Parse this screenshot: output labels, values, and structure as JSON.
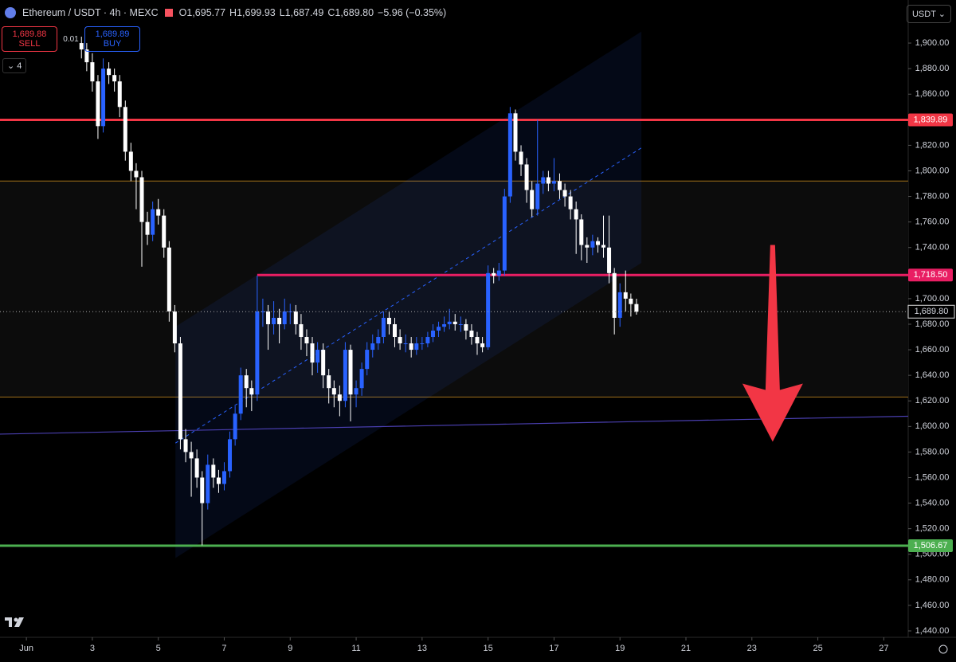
{
  "header": {
    "symbol": "Ethereum / USDT · 4h · MEXC",
    "ohlc": [
      "O1,695.77",
      "H1,699.93",
      "L1,687.49",
      "C1,689.80",
      "−5.96 (−0.35%)"
    ]
  },
  "trade": {
    "sell_price": "1,689.88",
    "sell": "SELL",
    "qty": "0.01",
    "buy_price": "1,689.89",
    "buy": "BUY"
  },
  "indicator_count": "4",
  "currency": "USDT",
  "chart_data": {
    "type": "candlestick",
    "x": [
      2.67,
      2.83,
      3,
      3.17,
      3.33,
      3.5,
      3.67,
      3.83,
      4,
      4.17,
      4.33,
      4.5,
      4.67,
      4.83,
      5,
      5.17,
      5.33,
      5.5,
      5.67,
      5.83,
      6,
      6.17,
      6.33,
      6.5,
      6.67,
      6.83,
      7,
      7.17,
      7.33,
      7.5,
      7.67,
      7.83,
      8,
      8.17,
      8.33,
      8.5,
      8.67,
      8.83,
      9,
      9.17,
      9.33,
      9.5,
      9.67,
      9.83,
      10,
      10.17,
      10.33,
      10.5,
      10.67,
      10.83,
      11,
      11.17,
      11.33,
      11.5,
      11.67,
      11.83,
      12,
      12.17,
      12.33,
      12.5,
      12.67,
      12.83,
      13,
      13.17,
      13.33,
      13.5,
      13.67,
      13.83,
      14,
      14.17,
      14.33,
      14.5,
      14.67,
      14.83,
      15,
      15.17,
      15.33,
      15.5,
      15.67,
      15.83,
      16,
      16.17,
      16.33,
      16.5,
      16.67,
      16.83,
      17,
      17.17,
      17.33,
      17.5,
      17.67,
      17.83,
      18,
      18.17,
      18.33,
      18.5,
      18.67,
      18.83,
      19,
      19.17,
      19.33,
      19.5
    ],
    "open": [
      1900,
      1895,
      1885,
      1870,
      1835,
      1880,
      1875,
      1870,
      1850,
      1815,
      1800,
      1795,
      1760,
      1750,
      1770,
      1765,
      1740,
      1690,
      1665,
      1590,
      1580,
      1575,
      1560,
      1540,
      1570,
      1560,
      1555,
      1565,
      1590,
      1610,
      1640,
      1630,
      1625,
      1690,
      1690,
      1680,
      1685,
      1680,
      1690,
      1690,
      1680,
      1670,
      1665,
      1650,
      1660,
      1640,
      1630,
      1625,
      1620,
      1660,
      1625,
      1630,
      1645,
      1660,
      1665,
      1670,
      1685,
      1680,
      1670,
      1665,
      1665,
      1660,
      1665,
      1665,
      1670,
      1675,
      1678,
      1680,
      1682,
      1680,
      1680,
      1675,
      1670,
      1665,
      1662,
      1720,
      1718,
      1722,
      1780,
      1845,
      1815,
      1805,
      1785,
      1770,
      1790,
      1795,
      1790,
      1792,
      1785,
      1780,
      1770,
      1762,
      1742,
      1740,
      1745,
      1742,
      1740,
      1720,
      1685,
      1705,
      1700,
      1695.77
    ],
    "high": [
      1905,
      1900,
      1892,
      1875,
      1888,
      1885,
      1880,
      1875,
      1855,
      1822,
      1806,
      1800,
      1768,
      1776,
      1778,
      1770,
      1745,
      1695,
      1670,
      1598,
      1588,
      1582,
      1565,
      1578,
      1575,
      1566,
      1572,
      1596,
      1616,
      1646,
      1645,
      1636,
      1718,
      1700,
      1695,
      1698,
      1692,
      1700,
      1696,
      1695,
      1688,
      1676,
      1670,
      1666,
      1665,
      1645,
      1636,
      1632,
      1666,
      1664,
      1636,
      1650,
      1666,
      1672,
      1676,
      1690,
      1690,
      1685,
      1676,
      1672,
      1670,
      1670,
      1670,
      1674,
      1680,
      1682,
      1686,
      1692,
      1688,
      1686,
      1684,
      1680,
      1674,
      1670,
      1726,
      1724,
      1728,
      1786,
      1850,
      1848,
      1820,
      1810,
      1792,
      1840,
      1800,
      1800,
      1810,
      1798,
      1790,
      1785,
      1776,
      1766,
      1748,
      1750,
      1748,
      1765,
      1765,
      1724,
      1712,
      1722,
      1704,
      1699.93
    ],
    "low": [
      1888,
      1878,
      1862,
      1825,
      1830,
      1868,
      1862,
      1842,
      1808,
      1792,
      1770,
      1725,
      1742,
      1745,
      1758,
      1732,
      1682,
      1658,
      1582,
      1572,
      1545,
      1552,
      1507,
      1535,
      1552,
      1548,
      1550,
      1560,
      1585,
      1605,
      1615,
      1612,
      1620,
      1678,
      1660,
      1672,
      1665,
      1676,
      1680,
      1672,
      1660,
      1655,
      1640,
      1642,
      1630,
      1618,
      1615,
      1608,
      1615,
      1604,
      1615,
      1624,
      1640,
      1654,
      1660,
      1665,
      1672,
      1662,
      1660,
      1658,
      1654,
      1656,
      1660,
      1662,
      1666,
      1670,
      1674,
      1676,
      1675,
      1674,
      1668,
      1664,
      1656,
      1658,
      1660,
      1712,
      1714,
      1718,
      1775,
      1808,
      1796,
      1775,
      1764,
      1765,
      1782,
      1784,
      1784,
      1778,
      1772,
      1762,
      1735,
      1730,
      1728,
      1734,
      1736,
      1732,
      1712,
      1672,
      1678,
      1690,
      1686,
      1687.49
    ],
    "close": [
      1895,
      1885,
      1870,
      1835,
      1880,
      1875,
      1870,
      1850,
      1815,
      1800,
      1795,
      1760,
      1750,
      1770,
      1765,
      1740,
      1690,
      1665,
      1590,
      1580,
      1575,
      1560,
      1540,
      1570,
      1560,
      1555,
      1565,
      1590,
      1610,
      1640,
      1630,
      1625,
      1690,
      1690,
      1680,
      1685,
      1680,
      1690,
      1690,
      1680,
      1670,
      1665,
      1650,
      1660,
      1640,
      1630,
      1625,
      1620,
      1660,
      1625,
      1630,
      1645,
      1660,
      1665,
      1670,
      1685,
      1680,
      1670,
      1665,
      1665,
      1660,
      1665,
      1665,
      1670,
      1675,
      1678,
      1680,
      1682,
      1680,
      1680,
      1675,
      1670,
      1665,
      1662,
      1720,
      1718,
      1722,
      1780,
      1845,
      1815,
      1805,
      1785,
      1770,
      1790,
      1795,
      1790,
      1792,
      1785,
      1780,
      1770,
      1762,
      1742,
      1740,
      1745,
      1742,
      1740,
      1720,
      1685,
      1705,
      1700,
      1695.77,
      1689.8
    ],
    "up_color": "#2962ff",
    "down_color": "#ffffff",
    "xlim": [
      0.2,
      27.74
    ],
    "ylim": [
      1435,
      1933.7
    ],
    "xticks": [
      {
        "value": 1,
        "label": "Jun"
      },
      3,
      5,
      7,
      9,
      11,
      13,
      15,
      17,
      19,
      21,
      23,
      25,
      27
    ],
    "yticks": [
      {
        "value": 1440,
        "label": "1,440.00"
      },
      {
        "value": 1460,
        "label": "1,460.00"
      },
      {
        "value": 1480,
        "label": "1,480.00"
      },
      {
        "value": 1500,
        "label": "1,500.00"
      },
      {
        "value": 1520,
        "label": "1,520.00"
      },
      {
        "value": 1540,
        "label": "1,540.00"
      },
      {
        "value": 1560,
        "label": "1,560.00"
      },
      {
        "value": 1580,
        "label": "1,580.00"
      },
      {
        "value": 1600,
        "label": "1,600.00"
      },
      {
        "value": 1620,
        "label": "1,620.00"
      },
      {
        "value": 1640,
        "label": "1,640.00"
      },
      {
        "value": 1660,
        "label": "1,660.00"
      },
      {
        "value": 1680,
        "label": "1,680.00"
      },
      {
        "value": 1700,
        "label": "1,700.00"
      },
      {
        "value": 1720,
        "label": "1,720.00"
      },
      {
        "value": 1740,
        "label": "1,740.00"
      },
      {
        "value": 1760,
        "label": "1,760.00"
      },
      {
        "value": 1780,
        "label": "1,780.00"
      },
      {
        "value": 1800,
        "label": "1,800.00"
      },
      {
        "value": 1820,
        "label": "1,820.00"
      },
      {
        "value": 1840,
        "label": "1,840.00"
      },
      {
        "value": 1860,
        "label": "1,860.00"
      },
      {
        "value": 1880,
        "label": "1,880.00"
      },
      {
        "value": 1900,
        "label": "1,900.00"
      }
    ],
    "levels": [
      {
        "value": 1839.89,
        "label": "1,839.89",
        "color": "#f23645"
      },
      {
        "value": 1718.5,
        "label": "1,718.50",
        "color": "#e91e63",
        "from": 8
      },
      {
        "value": 1506.67,
        "label": "1,506.67",
        "color": "#4caf50"
      }
    ],
    "zone": {
      "values": [
        1792,
        1623
      ],
      "color": "#a0701a"
    },
    "trendline": {
      "x": [
        0.2,
        27.74
      ],
      "values": [
        1594,
        1608
      ],
      "color": "#4a3fb0"
    },
    "channel": {
      "x": [
        5.52,
        19.65
      ],
      "upper": [
        1678,
        1909
      ],
      "lower": [
        1497,
        1728
      ],
      "middle": [
        1587,
        1818
      ],
      "color": "#2962ff"
    },
    "last_price": {
      "value": 1689.8,
      "label": "1,689.80"
    },
    "arrow": {
      "x": 23.63,
      "values": [
        1742,
        1588
      ],
      "color": "#f23645"
    }
  }
}
